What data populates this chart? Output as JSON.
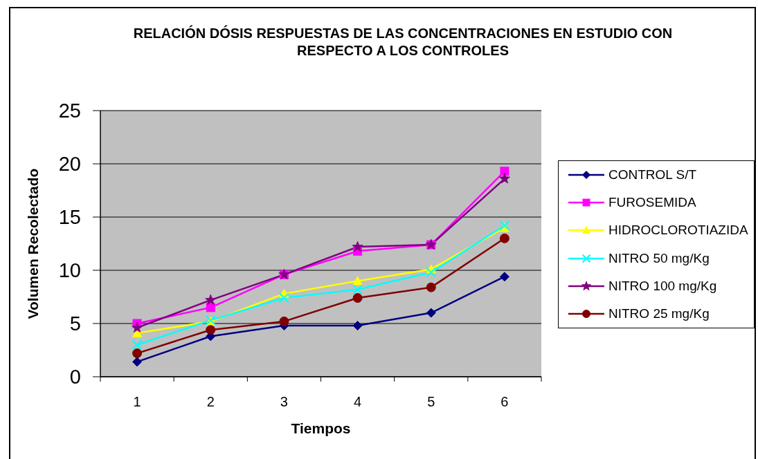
{
  "chart_data": {
    "type": "line",
    "title": "RELACIÓN DÓSIS RESPUESTAS DE LAS CONCENTRACIONES EN ESTUDIO CON RESPECTO A LOS CONTROLES",
    "xlabel": "Tiempos",
    "ylabel": "Volumen Recolectado",
    "categories": [
      "1",
      "2",
      "3",
      "4",
      "5",
      "6"
    ],
    "ylim": [
      0,
      25
    ],
    "yticks": [
      0,
      5,
      10,
      15,
      20,
      25
    ],
    "grid": "y",
    "legend": "right",
    "series": [
      {
        "name": "CONTROL S/T",
        "color": "#000080",
        "marker": "diamond",
        "values": [
          1.4,
          3.8,
          4.8,
          4.8,
          6.0,
          9.4
        ]
      },
      {
        "name": "FUROSEMIDA",
        "color": "#ff00ff",
        "marker": "square",
        "values": [
          5.0,
          6.5,
          9.6,
          11.8,
          12.4,
          19.3
        ]
      },
      {
        "name": "HIDROCLOROTIAZIDA",
        "color": "#ffff00",
        "marker": "triangle",
        "values": [
          4.1,
          5.2,
          7.8,
          9.0,
          10.1,
          14.0
        ]
      },
      {
        "name": "NITRO 50 mg/Kg",
        "color": "#00ffff",
        "marker": "cross",
        "values": [
          3.0,
          5.3,
          7.4,
          8.2,
          9.8,
          14.2
        ]
      },
      {
        "name": "NITRO 100 mg/Kg",
        "color": "#800080",
        "marker": "star",
        "values": [
          4.6,
          7.2,
          9.6,
          12.2,
          12.4,
          18.6
        ]
      },
      {
        "name": "NITRO 25 mg/Kg",
        "color": "#800000",
        "marker": "circle",
        "values": [
          2.2,
          4.4,
          5.2,
          7.4,
          8.4,
          13.0
        ]
      }
    ]
  }
}
